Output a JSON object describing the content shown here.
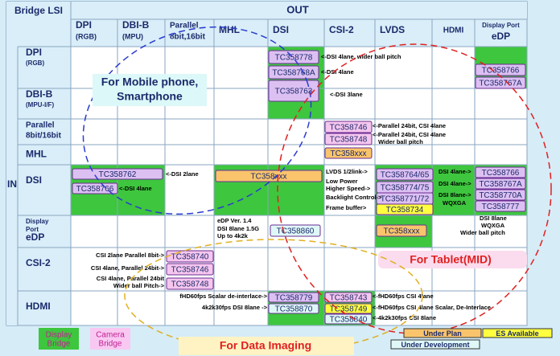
{
  "header": {
    "corner": "Bridge LSI",
    "out": "OUT",
    "in": "IN"
  },
  "columns": [
    {
      "lines": [
        "DPI",
        "(RGB)"
      ]
    },
    {
      "lines": [
        "DBI-B",
        "(MPU)"
      ]
    },
    {
      "lines": [
        "Parallel",
        "8bit,16bit"
      ]
    },
    {
      "lines": [
        "MHL"
      ]
    },
    {
      "lines": [
        "DSI"
      ]
    },
    {
      "lines": [
        "CSI-2"
      ]
    },
    {
      "lines": [
        "LVDS"
      ]
    },
    {
      "lines": [
        "HDMI"
      ]
    },
    {
      "lines": [
        "Display Port",
        "eDP"
      ]
    }
  ],
  "rows": [
    {
      "lines": [
        "DPI",
        "(RGB)"
      ]
    },
    {
      "lines": [
        "DBI-B",
        "(MPU-I/F)"
      ]
    },
    {
      "lines": [
        "Parallel",
        "8bit/16bit"
      ]
    },
    {
      "lines": [
        "MHL"
      ]
    },
    {
      "lines": [
        "DSI"
      ]
    },
    {
      "lines": [
        "Display",
        "Port",
        "eDP"
      ]
    },
    {
      "lines": [
        "CSI-2"
      ]
    },
    {
      "lines": [
        "HDMI"
      ]
    }
  ],
  "chips": [
    {
      "label": "TC358778",
      "color": "#dcc0f2"
    },
    {
      "label": "TC358768A",
      "color": "#dcc0f2"
    },
    {
      "label": "TC358763",
      "color": "#dcc0f2"
    },
    {
      "label": "TC358766",
      "color": "#dcc0f2"
    },
    {
      "label": "TC358767A",
      "color": "#dcc0f2"
    },
    {
      "label": "TC358746",
      "color": "#f5c6ee"
    },
    {
      "label": "TC358748",
      "color": "#f5c6ee"
    },
    {
      "label": "TC358xxx",
      "color": "#f9c46b"
    },
    {
      "label": "TC358762",
      "color": "#dcc0f2"
    },
    {
      "label": "TC358766",
      "color": "#dcc0f2"
    },
    {
      "label": "TC358xxx",
      "color": "#f9c46b"
    },
    {
      "label": "TC358764/65",
      "color": "#dcc0f2"
    },
    {
      "label": "TC358774/75",
      "color": "#dcc0f2"
    },
    {
      "label": "TC358771/72",
      "color": "#dcc0f2"
    },
    {
      "label": "TC358734",
      "color": "#ffff40"
    },
    {
      "label": "TC358766",
      "color": "#dcc0f2"
    },
    {
      "label": "TC358767A",
      "color": "#dcc0f2"
    },
    {
      "label": "TC358770A",
      "color": "#dcc0f2"
    },
    {
      "label": "TC358777",
      "color": "#dcc0f2"
    },
    {
      "label": "TC358860",
      "color": "#dff7f7"
    },
    {
      "label": "TC358xxx",
      "color": "#f9c46b"
    },
    {
      "label": "TC358740",
      "color": "#f5c6ee"
    },
    {
      "label": "TC358746",
      "color": "#f5c6ee"
    },
    {
      "label": "TC358748",
      "color": "#f5c6ee"
    },
    {
      "label": "TC358779",
      "color": "#dcc0f2"
    },
    {
      "label": "TC358870",
      "color": "#dff7f7"
    },
    {
      "label": "TC358743",
      "color": "#f5c6ee"
    },
    {
      "label": "TC358749",
      "color": "#ffff40"
    },
    {
      "label": "TC358840",
      "color": "#dff7f7"
    }
  ],
  "notes": [
    "<-DSI 4lane, wider ball pitch",
    "<-DSI 4lane",
    "<-DSI 3lane",
    "<-Parallel 24bit, CSI 4lane",
    "<-Parallel 24bit, CSI 4lane",
    "Wider ball pitch",
    "<-DSI 2lane",
    "<-DSI 4lane",
    "LVDS 1/2link->",
    "Low Power",
    "Higher Speed->",
    "Backlight Control->",
    "Frame buffer>",
    "DSI 4lane->",
    "DSI 4lane->",
    "DSI 8lane->",
    "WQXGA",
    "eDP Ver. 1.4",
    "DSI 8lane 1.5G",
    "Up to 4k2k",
    "DSI 8lane",
    "WQXGA",
    "Wider ball pitch",
    "CSI 2lane Parallel 8bit->",
    "CSI 4lane, Parallel 24bit->",
    "CSI 4lane, Parallel 24bit",
    "Wider ball Pitch->",
    "fHD60fps Scalar de-interlace->",
    "4k2k30fps DSI 8lane ->",
    "<-fHD60fps CSI 4lane",
    "<-fHD60fps CSI 4lane  Scalar, De-Interlace",
    "<-4k2k30fps CSI 8lane"
  ],
  "overlays": {
    "mobile": [
      "For Mobile phone,",
      "Smartphone"
    ],
    "tablet": "For Tablet(MID)",
    "imaging": "For  Data Imaging"
  },
  "legend": [
    {
      "label": [
        "Display",
        "Bridge"
      ],
      "color": "#3ec63e"
    },
    {
      "label": [
        "Camera",
        "Bridge"
      ],
      "color": "#f9c8f2"
    },
    {
      "label": [
        "Under Plan"
      ],
      "color": "#f9c46b"
    },
    {
      "label": [
        "ES Available"
      ],
      "color": "#ffff40"
    },
    {
      "label": [
        "Under Development"
      ],
      "color": "#dff7f7"
    }
  ]
}
